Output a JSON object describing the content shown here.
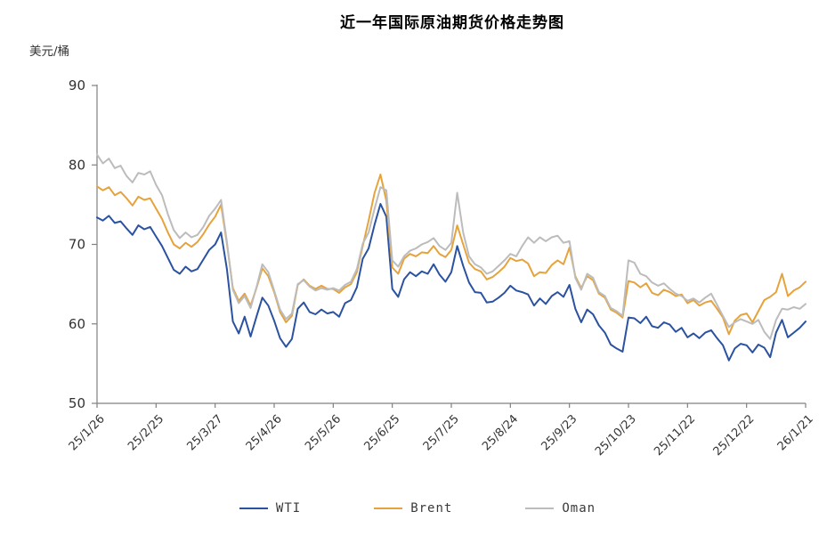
{
  "page": {
    "background": "#ffffff"
  },
  "chart_data": {
    "type": "line",
    "title": "近一年国际原油期货价格走势图",
    "ylabel": "美元/桶",
    "ylim": [
      50,
      90
    ],
    "yticks": [
      90,
      80,
      70,
      60,
      50
    ],
    "x_tick_labels": [
      "25/1/26",
      "25/2/25",
      "25/3/27",
      "25/4/26",
      "25/5/26",
      "25/6/25",
      "25/7/25",
      "25/8/24",
      "25/9/23",
      "25/10/23",
      "25/11/22",
      "25/12/22",
      "26/1/21"
    ],
    "x_tick_every_n_points": 10,
    "grid": false,
    "legend_position": "bottom",
    "axis_color": "#808080",
    "tick_label_color": "#333333",
    "series": [
      {
        "name": "WTI",
        "color": "#2b52a0",
        "values": [
          73.4,
          73.0,
          73.6,
          72.7,
          72.9,
          72.0,
          71.2,
          72.4,
          71.9,
          72.2,
          71.0,
          69.8,
          68.3,
          66.8,
          66.3,
          67.2,
          66.6,
          66.9,
          68.1,
          69.3,
          70.0,
          71.5,
          66.9,
          60.3,
          58.8,
          60.9,
          58.4,
          60.9,
          63.3,
          62.3,
          60.4,
          58.2,
          57.1,
          58.1,
          61.9,
          62.7,
          61.5,
          61.2,
          61.8,
          61.3,
          61.5,
          60.9,
          62.6,
          63.0,
          64.6,
          68.2,
          69.5,
          72.5,
          75.1,
          73.5,
          64.4,
          63.4,
          65.6,
          66.5,
          66.0,
          66.6,
          66.3,
          67.5,
          66.2,
          65.3,
          66.5,
          69.8,
          67.3,
          65.2,
          64.0,
          63.9,
          62.7,
          62.8,
          63.3,
          63.9,
          64.8,
          64.2,
          64.0,
          63.7,
          62.3,
          63.2,
          62.5,
          63.5,
          64.0,
          63.4,
          64.9,
          61.9,
          60.2,
          61.8,
          61.2,
          59.8,
          58.9,
          57.4,
          56.9,
          56.5,
          60.8,
          60.7,
          60.1,
          60.9,
          59.7,
          59.5,
          60.2,
          59.9,
          59.0,
          59.5,
          58.3,
          58.8,
          58.2,
          58.9,
          59.2,
          58.2,
          57.3,
          55.4,
          56.9,
          57.5,
          57.3,
          56.4,
          57.4,
          57.0,
          55.8,
          58.9,
          60.5,
          58.3,
          58.9,
          59.5,
          60.3
        ]
      },
      {
        "name": "Brent",
        "color": "#e6a33c",
        "values": [
          77.3,
          76.8,
          77.2,
          76.2,
          76.6,
          75.8,
          74.9,
          76.0,
          75.6,
          75.8,
          74.5,
          73.2,
          71.5,
          70.0,
          69.5,
          70.2,
          69.7,
          70.3,
          71.3,
          72.5,
          73.5,
          75.0,
          70.1,
          64.5,
          62.9,
          63.8,
          62.3,
          64.5,
          67.0,
          66.0,
          64.0,
          61.5,
          60.2,
          61.0,
          64.9,
          65.6,
          64.8,
          64.4,
          64.8,
          64.4,
          64.4,
          63.9,
          64.6,
          65.0,
          66.5,
          69.8,
          73.0,
          76.5,
          78.8,
          75.5,
          67.1,
          66.3,
          68.2,
          68.8,
          68.5,
          69.0,
          68.9,
          69.8,
          68.8,
          68.4,
          69.3,
          72.4,
          70.0,
          67.7,
          66.9,
          66.6,
          65.6,
          65.9,
          66.5,
          67.2,
          68.3,
          67.9,
          68.1,
          67.6,
          66.0,
          66.5,
          66.4,
          67.4,
          68.0,
          67.5,
          69.6,
          66.0,
          64.5,
          66.0,
          65.5,
          63.8,
          63.3,
          61.8,
          61.4,
          60.8,
          65.4,
          65.2,
          64.6,
          65.1,
          63.9,
          63.6,
          64.3,
          64.0,
          63.5,
          63.7,
          62.6,
          63.0,
          62.3,
          62.7,
          62.9,
          61.9,
          60.8,
          58.7,
          60.4,
          61.1,
          61.3,
          60.2,
          61.6,
          63.0,
          63.4,
          64.0,
          66.3,
          63.5,
          64.2,
          64.6,
          65.3
        ]
      },
      {
        "name": "Oman",
        "color": "#bcbcbc",
        "values": [
          81.3,
          80.2,
          80.8,
          79.6,
          79.9,
          78.6,
          77.8,
          79.0,
          78.8,
          79.2,
          77.5,
          76.2,
          73.8,
          71.8,
          70.8,
          71.5,
          70.9,
          71.2,
          72.2,
          73.6,
          74.5,
          75.6,
          70.3,
          64.3,
          62.6,
          63.5,
          62.0,
          64.6,
          67.5,
          66.5,
          64.2,
          61.8,
          60.6,
          61.3,
          65.0,
          65.5,
          64.7,
          64.2,
          64.5,
          64.3,
          64.5,
          64.2,
          64.9,
          65.3,
          66.9,
          70.1,
          71.5,
          74.5,
          77.2,
          76.8,
          68.0,
          67.2,
          68.5,
          69.2,
          69.5,
          70.0,
          70.3,
          70.8,
          69.8,
          69.3,
          70.2,
          76.5,
          71.5,
          68.5,
          67.5,
          67.1,
          66.3,
          66.6,
          67.3,
          68.0,
          68.8,
          68.5,
          69.8,
          70.9,
          70.2,
          70.9,
          70.4,
          70.9,
          71.1,
          70.2,
          70.4,
          65.8,
          64.3,
          66.3,
          65.8,
          64.0,
          63.5,
          62.0,
          61.6,
          61.0,
          68.0,
          67.7,
          66.3,
          66.0,
          65.2,
          64.8,
          65.1,
          64.4,
          63.8,
          63.5,
          62.9,
          63.2,
          62.7,
          63.3,
          63.8,
          62.4,
          61.0,
          59.6,
          60.2,
          60.6,
          60.3,
          60.0,
          60.5,
          59.0,
          58.1,
          60.5,
          61.9,
          61.8,
          62.1,
          61.9,
          62.5
        ]
      }
    ]
  }
}
